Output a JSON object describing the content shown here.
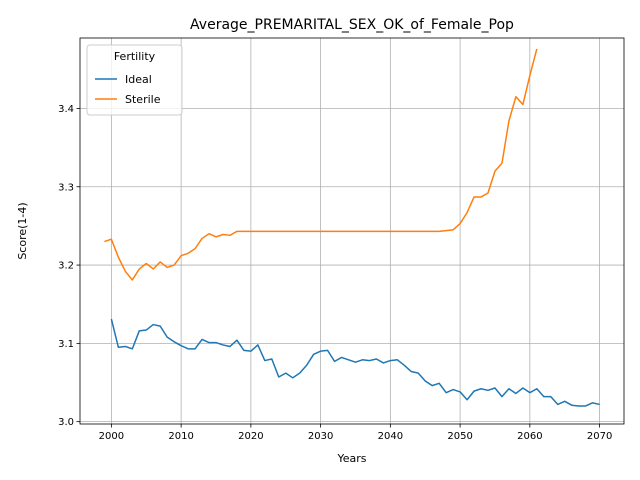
{
  "chart_data": {
    "type": "line",
    "title": "Average_PREMARITAL_SEX_OK_of_Female_Pop",
    "xlabel": "Years",
    "ylabel": "Score(1-4)",
    "xlim": [
      1995.5,
      2073.5
    ],
    "ylim": [
      2.997,
      3.49
    ],
    "xticks": [
      2000,
      2010,
      2020,
      2030,
      2040,
      2050,
      2060,
      2070
    ],
    "yticks": [
      3.0,
      3.1,
      3.2,
      3.3,
      3.4
    ],
    "ytick_labels": [
      "3.0",
      "3.1",
      "3.2",
      "3.3",
      "3.4"
    ],
    "grid": true,
    "legend": {
      "title": "Fertility",
      "placement": "top-left"
    },
    "series": [
      {
        "name": "Ideal",
        "color": "#1f77b4",
        "x": [
          2000,
          2001,
          2002,
          2003,
          2004,
          2005,
          2006,
          2007,
          2008,
          2009,
          2010,
          2011,
          2012,
          2013,
          2014,
          2015,
          2016,
          2017,
          2018,
          2019,
          2020,
          2021,
          2022,
          2023,
          2024,
          2025,
          2026,
          2027,
          2028,
          2029,
          2030,
          2031,
          2032,
          2033,
          2034,
          2035,
          2036,
          2037,
          2038,
          2039,
          2040,
          2041,
          2042,
          2043,
          2044,
          2045,
          2046,
          2047,
          2048,
          2049,
          2050,
          2051,
          2052,
          2053,
          2054,
          2055,
          2056,
          2057,
          2058,
          2059,
          2060,
          2061,
          2062,
          2063,
          2064,
          2065,
          2066,
          2067,
          2068,
          2069,
          2070
        ],
        "values": [
          3.131,
          3.095,
          3.096,
          3.093,
          3.116,
          3.117,
          3.124,
          3.122,
          3.108,
          3.102,
          3.097,
          3.093,
          3.093,
          3.105,
          3.101,
          3.101,
          3.098,
          3.096,
          3.104,
          3.091,
          3.09,
          3.098,
          3.078,
          3.08,
          3.057,
          3.062,
          3.056,
          3.062,
          3.072,
          3.086,
          3.09,
          3.091,
          3.077,
          3.082,
          3.079,
          3.076,
          3.079,
          3.078,
          3.08,
          3.075,
          3.078,
          3.079,
          3.072,
          3.064,
          3.062,
          3.052,
          3.046,
          3.049,
          3.037,
          3.041,
          3.038,
          3.028,
          3.039,
          3.042,
          3.04,
          3.043,
          3.032,
          3.042,
          3.036,
          3.043,
          3.037,
          3.042,
          3.032,
          3.032,
          3.022,
          3.026,
          3.021,
          3.02,
          3.02,
          3.024,
          3.022
        ]
      },
      {
        "name": "Sterile",
        "color": "#ff7f0e",
        "x": [
          1999,
          2000,
          2001,
          2002,
          2003,
          2004,
          2005,
          2006,
          2007,
          2008,
          2009,
          2010,
          2011,
          2012,
          2013,
          2014,
          2015,
          2016,
          2017,
          2018,
          2019,
          2020,
          2021,
          2022,
          2023,
          2024,
          2025,
          2026,
          2027,
          2028,
          2029,
          2030,
          2031,
          2032,
          2033,
          2034,
          2035,
          2036,
          2037,
          2038,
          2039,
          2040,
          2041,
          2042,
          2043,
          2044,
          2045,
          2046,
          2047,
          2048,
          2049,
          2050,
          2051,
          2052,
          2053,
          2054,
          2055,
          2056,
          2057,
          2058,
          2059,
          2060,
          2061
        ],
        "values": [
          3.23,
          3.233,
          3.21,
          3.192,
          3.181,
          3.195,
          3.202,
          3.195,
          3.204,
          3.197,
          3.2,
          3.212,
          3.215,
          3.221,
          3.234,
          3.24,
          3.236,
          3.239,
          3.238,
          3.243,
          3.243,
          3.243,
          3.243,
          3.243,
          3.243,
          3.243,
          3.243,
          3.243,
          3.243,
          3.243,
          3.243,
          3.243,
          3.243,
          3.243,
          3.243,
          3.243,
          3.243,
          3.243,
          3.243,
          3.243,
          3.243,
          3.243,
          3.243,
          3.243,
          3.243,
          3.243,
          3.243,
          3.243,
          3.243,
          3.244,
          3.245,
          3.253,
          3.267,
          3.287,
          3.287,
          3.292,
          3.32,
          3.33,
          3.384,
          3.415,
          3.405,
          3.442,
          3.476
        ]
      }
    ]
  }
}
